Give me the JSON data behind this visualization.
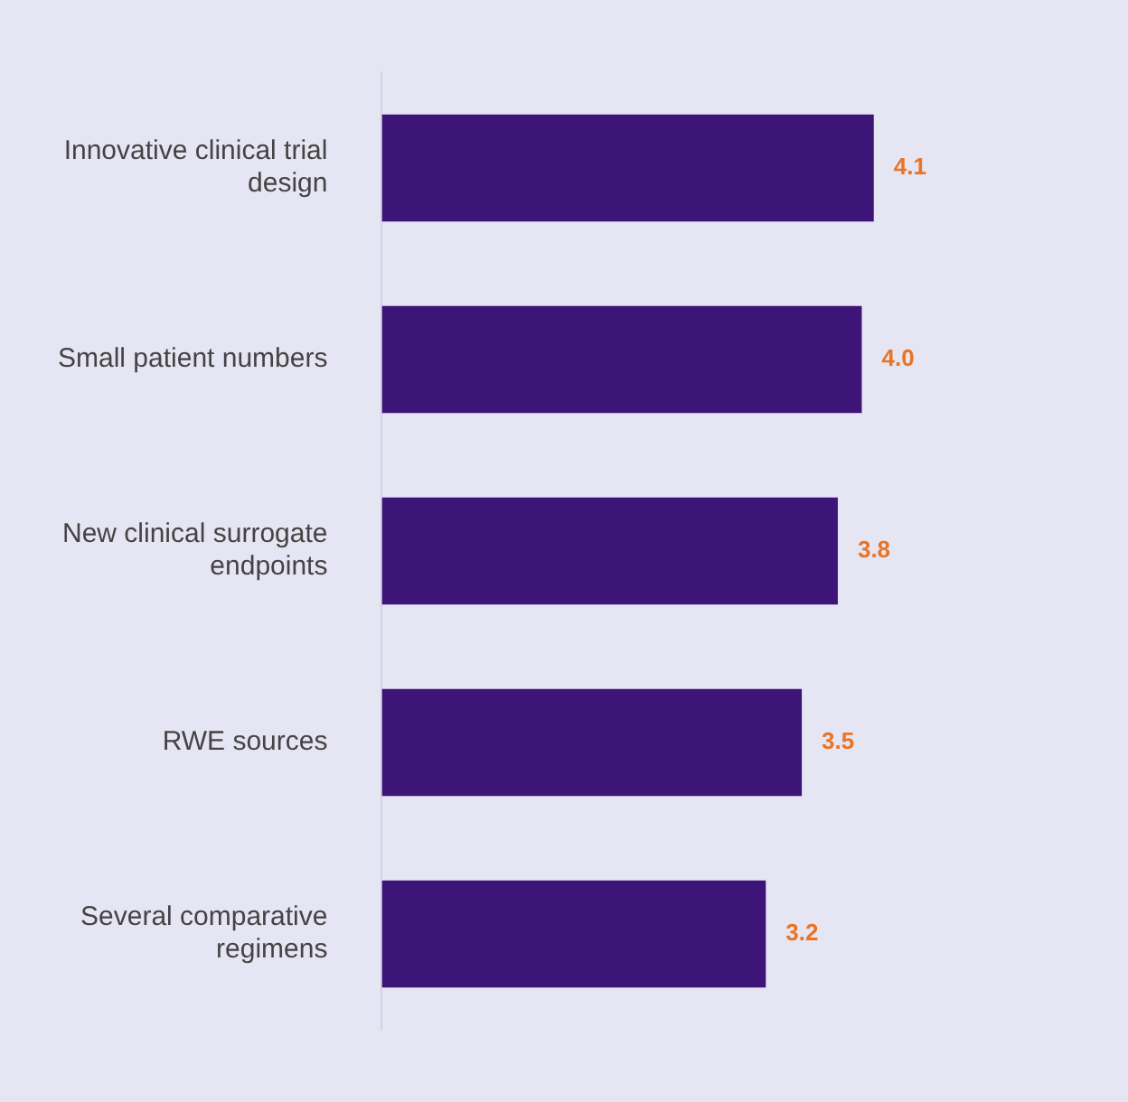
{
  "chart_data": {
    "type": "bar",
    "orientation": "horizontal",
    "categories": [
      "Innovative clinical trial design",
      "Small patient numbers",
      "New clinical surrogate endpoints",
      "RWE sources",
      "Several comparative regimens"
    ],
    "values": [
      4.1,
      4.0,
      3.8,
      3.5,
      3.2
    ],
    "color": "#3d1478",
    "value_labels": [
      "4.1",
      "4.0",
      "3.8",
      "3.5",
      "3.2"
    ],
    "tick_labels": "y",
    "grid": false,
    "legend": false
  }
}
